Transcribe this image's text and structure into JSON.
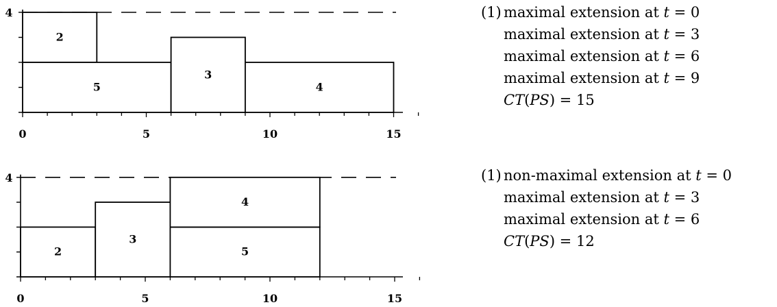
{
  "charts": [
    {
      "id": "top",
      "capacity_label": "4",
      "capacity": 4,
      "x_ticks": [
        "0",
        "5",
        "10",
        "15"
      ],
      "jobs": [
        {
          "label": "2",
          "start": 0,
          "end": 3,
          "bottom": 2,
          "top": 4
        },
        {
          "label": "5",
          "start": 0,
          "end": 6,
          "bottom": 0,
          "top": 2
        },
        {
          "label": "3",
          "start": 6,
          "end": 9,
          "bottom": 0,
          "top": 3
        },
        {
          "label": "4",
          "start": 9,
          "end": 15,
          "bottom": 0,
          "top": 2
        }
      ],
      "caption": {
        "number": "(1)",
        "lines": [
          "maximal extension at t = 0",
          "maximal extension at t = 3",
          "maximal extension at t = 6",
          "maximal extension at t = 9"
        ],
        "ct": "CT(PS) = 15"
      }
    },
    {
      "id": "bottom",
      "capacity_label": "4",
      "capacity": 4,
      "x_ticks": [
        "0",
        "5",
        "10",
        "15"
      ],
      "jobs": [
        {
          "label": "2",
          "start": 0,
          "end": 3,
          "bottom": 0,
          "top": 2
        },
        {
          "label": "3",
          "start": 3,
          "end": 6,
          "bottom": 0,
          "top": 3
        },
        {
          "label": "5",
          "start": 6,
          "end": 12,
          "bottom": 0,
          "top": 2
        },
        {
          "label": "4",
          "start": 6,
          "end": 12,
          "bottom": 2,
          "top": 4
        }
      ],
      "caption": {
        "number": "(1)",
        "lines": [
          "non-maximal extension at t = 0",
          "maximal extension at t = 3",
          "maximal extension at t = 6"
        ],
        "ct": "CT(PS) = 12"
      }
    }
  ]
}
